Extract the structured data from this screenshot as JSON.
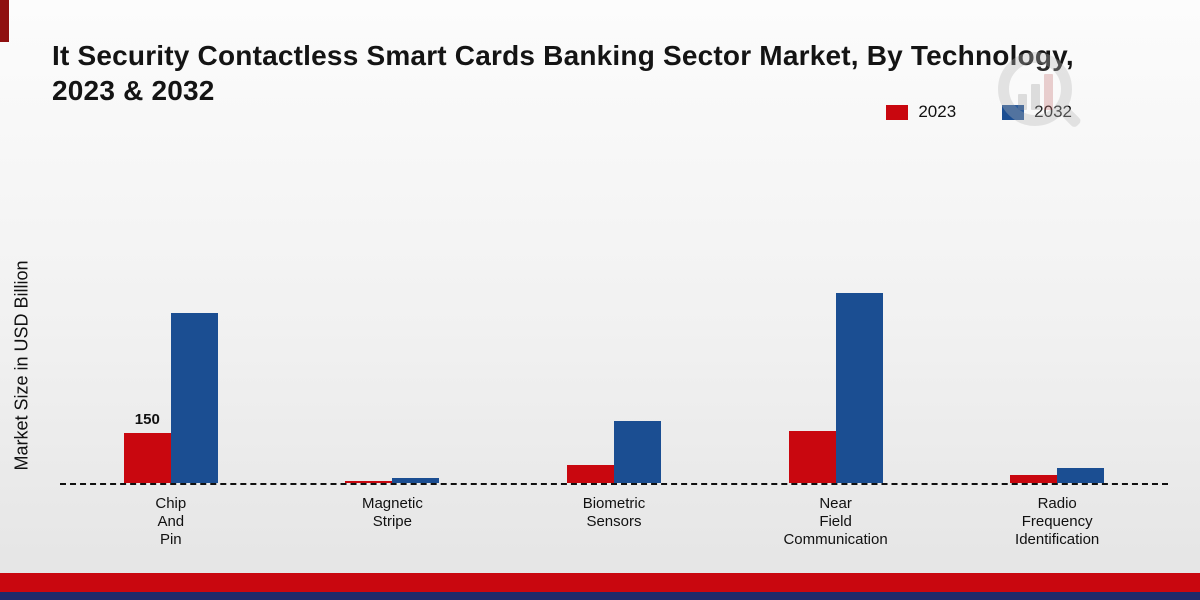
{
  "page": {
    "title_line1": "It Security Contactless Smart Cards Banking Sector Market, By Technology,",
    "title_line2": "2023 & 2032",
    "ylabel": "Market Size in USD Billion"
  },
  "legend": [
    {
      "label": "2023",
      "color": "#c9070f"
    },
    {
      "label": "2032",
      "color": "#1b4e92"
    }
  ],
  "colors": {
    "series_2023": "#c9070f",
    "series_2032": "#1b4e92",
    "footer_red": "#c9070f",
    "footer_navy": "#1e2a6a"
  },
  "chart_data": {
    "type": "bar",
    "title": "It Security Contactless Smart Cards Banking Sector Market, By Technology, 2023 & 2032",
    "xlabel": "",
    "ylabel": "Market Size in USD Billion",
    "categories": [
      "Chip And Pin",
      "Magnetic Stripe",
      "Biometric Sensors",
      "Near Field Communication",
      "Radio Frequency Identification"
    ],
    "category_lines": [
      [
        "Chip",
        "And",
        "Pin"
      ],
      [
        "Magnetic",
        "Stripe"
      ],
      [
        "Biometric",
        "Sensors"
      ],
      [
        "Near",
        "Field",
        "Communication"
      ],
      [
        "Radio",
        "Frequency",
        "Identification"
      ]
    ],
    "series": [
      {
        "name": "2023",
        "color": "#c9070f",
        "values": [
          150,
          5,
          55,
          155,
          25
        ]
      },
      {
        "name": "2032",
        "color": "#1b4e92",
        "values": [
          510,
          15,
          185,
          570,
          45
        ]
      }
    ],
    "data_labels": [
      {
        "series": "2023",
        "category": "Chip And Pin",
        "text": "150"
      }
    ],
    "ylim": [
      0,
      600
    ],
    "grid": false,
    "legend_position": "top-right",
    "baseline_style": "dashed"
  }
}
